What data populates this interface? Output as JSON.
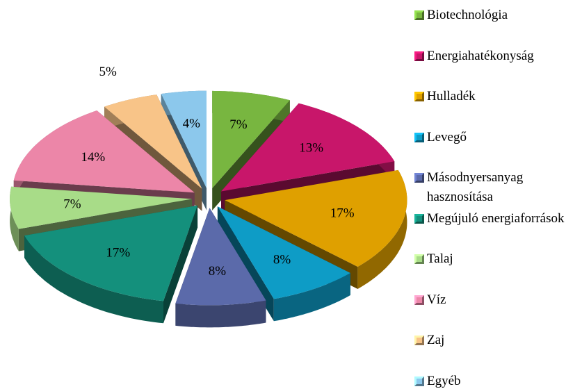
{
  "chart_data": {
    "type": "pie",
    "categories": [
      "Biotechnológia",
      "Energiahatékonyság",
      "Hulladék",
      "Levegő",
      "Másodnyersanyag hasznosítása",
      "Megújuló energiaforrások",
      "Talaj",
      "Víz",
      "Zaj",
      "Egyéb"
    ],
    "values": [
      7,
      13,
      17,
      8,
      8,
      17,
      7,
      14,
      5,
      4
    ],
    "value_labels": [
      "7%",
      "13%",
      "17%",
      "8%",
      "8%",
      "17%",
      "7%",
      "14%",
      "5%",
      "4%"
    ],
    "colors": [
      "#78b640",
      "#c8166a",
      "#dfa000",
      "#0e9cc6",
      "#5b6aaa",
      "#14907c",
      "#a8dc88",
      "#ec86a8",
      "#f8c488",
      "#8cc8ec"
    ]
  }
}
